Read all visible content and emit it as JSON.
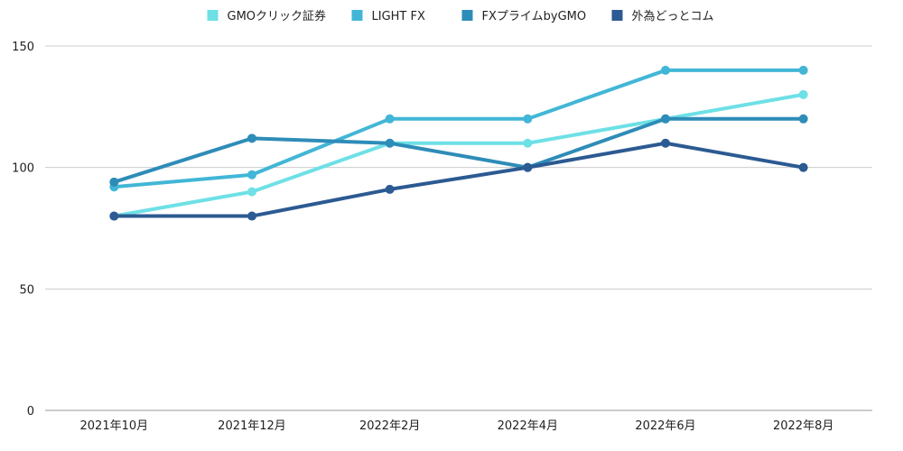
{
  "chart_data": {
    "type": "line",
    "categories": [
      "2021年10月",
      "2021年12月",
      "2022年2月",
      "2022年4月",
      "2022年6月",
      "2022年8月"
    ],
    "series": [
      {
        "name": "GMOクリック証券",
        "color": "#6ee0e6",
        "values": [
          80,
          90,
          110,
          110,
          120,
          130
        ]
      },
      {
        "name": "LIGHT FX",
        "color": "#42b6d6",
        "values": [
          92,
          97,
          120,
          120,
          140,
          140
        ]
      },
      {
        "name": "FXプライムbyGMO",
        "color": "#2e8cb8",
        "values": [
          94,
          112,
          110,
          100,
          120,
          120
        ]
      },
      {
        "name": "外為どっとコム",
        "color": "#2c5a92",
        "values": [
          80,
          80,
          91,
          100,
          110,
          100
        ]
      }
    ],
    "ylim": [
      0,
      150
    ],
    "yticks": [
      0,
      50,
      100,
      150
    ],
    "grid": true,
    "legend": "top-center"
  }
}
